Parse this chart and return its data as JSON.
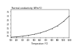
{
  "title": "Thermal conductivity (W/m°C)",
  "xlabel": "Temperature (°C)",
  "ylabel": "",
  "x_ticks": [
    100,
    200,
    300,
    400,
    500,
    600,
    700,
    800,
    900,
    1000,
    1100
  ],
  "y_ticks": [
    0.5,
    1.0,
    1.5,
    2.0,
    2.5,
    3.0,
    3.5
  ],
  "ylim": [
    0.3,
    3.8
  ],
  "xlim": [
    100,
    1100
  ],
  "line_color": "#444444",
  "marker": "o",
  "marker_size": 0.5,
  "line_width": 0.5,
  "bg_color": "#ffffff",
  "title_fontsize": 2.2,
  "tick_fontsize": 1.8,
  "label_fontsize": 2.0,
  "y_data": [
    0.35,
    0.4,
    0.47,
    0.57,
    0.7,
    0.88,
    1.1,
    1.4,
    1.78,
    2.3,
    3.0
  ]
}
